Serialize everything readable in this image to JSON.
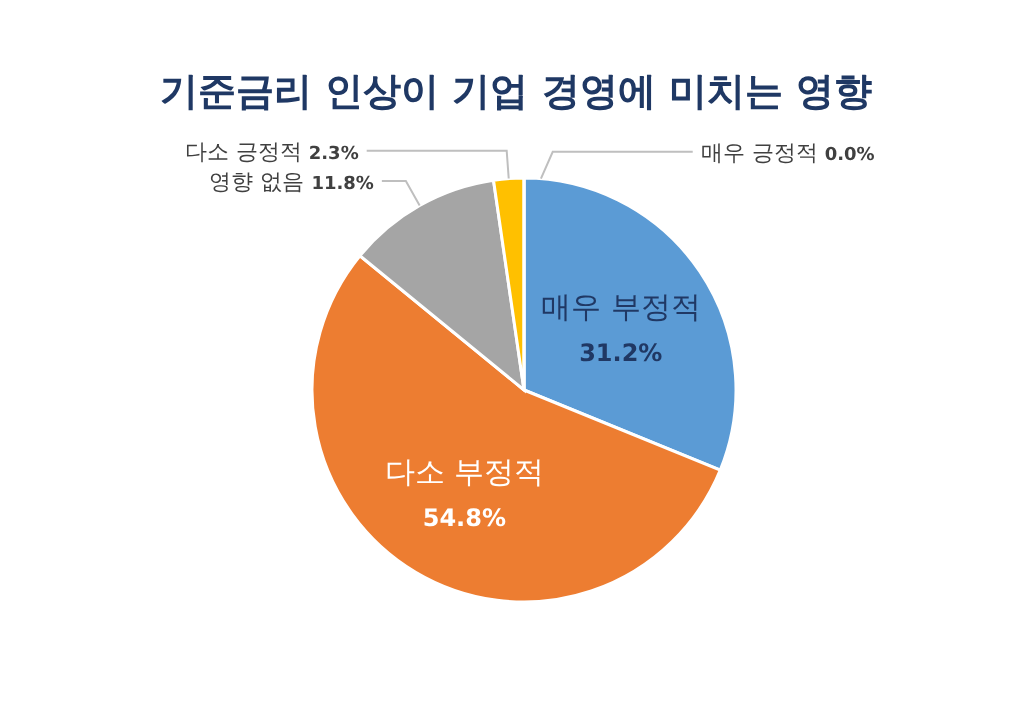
{
  "chart_data": {
    "type": "pie",
    "title": "기준금리 인상이 기업 경영에 미치는 영향",
    "categories": [
      "매우 부정적",
      "다소 부정적",
      "영향 없음",
      "다소 긍정적",
      "매우 긍정적"
    ],
    "values": [
      31.2,
      54.8,
      11.8,
      2.3,
      0.0
    ],
    "colors": [
      "#5b9bd5",
      "#ed7d31",
      "#a5a5a5",
      "#ffc000",
      "#4472c4"
    ],
    "value_labels": [
      "31.2%",
      "54.8%",
      "11.8%",
      "2.3%",
      "0.0%"
    ]
  }
}
